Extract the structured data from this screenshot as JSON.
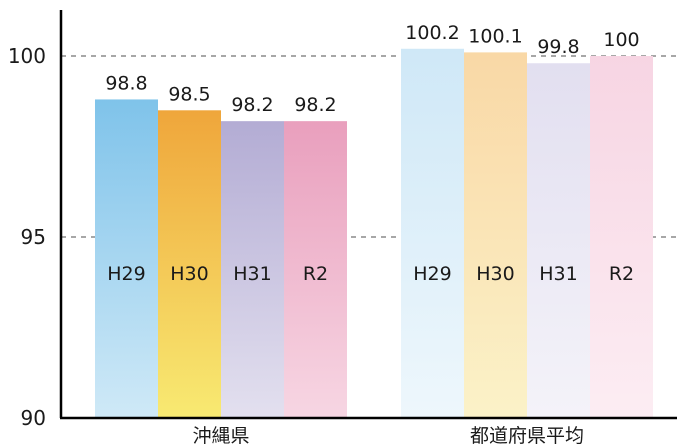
{
  "chart_data": {
    "type": "bar",
    "title": "",
    "xlabel": "",
    "ylabel": "",
    "ylim": [
      90,
      101.5
    ],
    "yticks": [
      90,
      95,
      100
    ],
    "grid": "dashed horizontal at 95 and 100",
    "groups": [
      {
        "name": "沖縄県",
        "bars": [
          {
            "category": "H29",
            "value": 98.8,
            "label": "98.8"
          },
          {
            "category": "H30",
            "value": 98.5,
            "label": "98.5"
          },
          {
            "category": "H31",
            "value": 98.2,
            "label": "98.2"
          },
          {
            "category": "R2",
            "value": 98.2,
            "label": "98.2"
          }
        ]
      },
      {
        "name": "都道府県平均",
        "bars": [
          {
            "category": "H29",
            "value": 100.2,
            "label": "100.2"
          },
          {
            "category": "H30",
            "value": 100.1,
            "label": "100.1"
          },
          {
            "category": "H31",
            "value": 99.8,
            "label": "99.8"
          },
          {
            "category": "R2",
            "value": 100,
            "label": "100"
          }
        ]
      }
    ],
    "colors": {
      "沖縄県": [
        [
          "#7fc3ea",
          "#cfe9f7"
        ],
        [
          "#efa63b",
          "#f8ea72"
        ],
        [
          "#b3acd4",
          "#e3e0ef"
        ],
        [
          "#e99fbd",
          "#f7d6e3"
        ]
      ],
      "都道府県平均": [
        [
          "#cfe8f7",
          "#eef7fc"
        ],
        [
          "#f9d8a6",
          "#fbf2c8"
        ],
        [
          "#e2dff0",
          "#f4f3f9"
        ],
        [
          "#f7d5e3",
          "#fcedf3"
        ]
      ]
    }
  }
}
